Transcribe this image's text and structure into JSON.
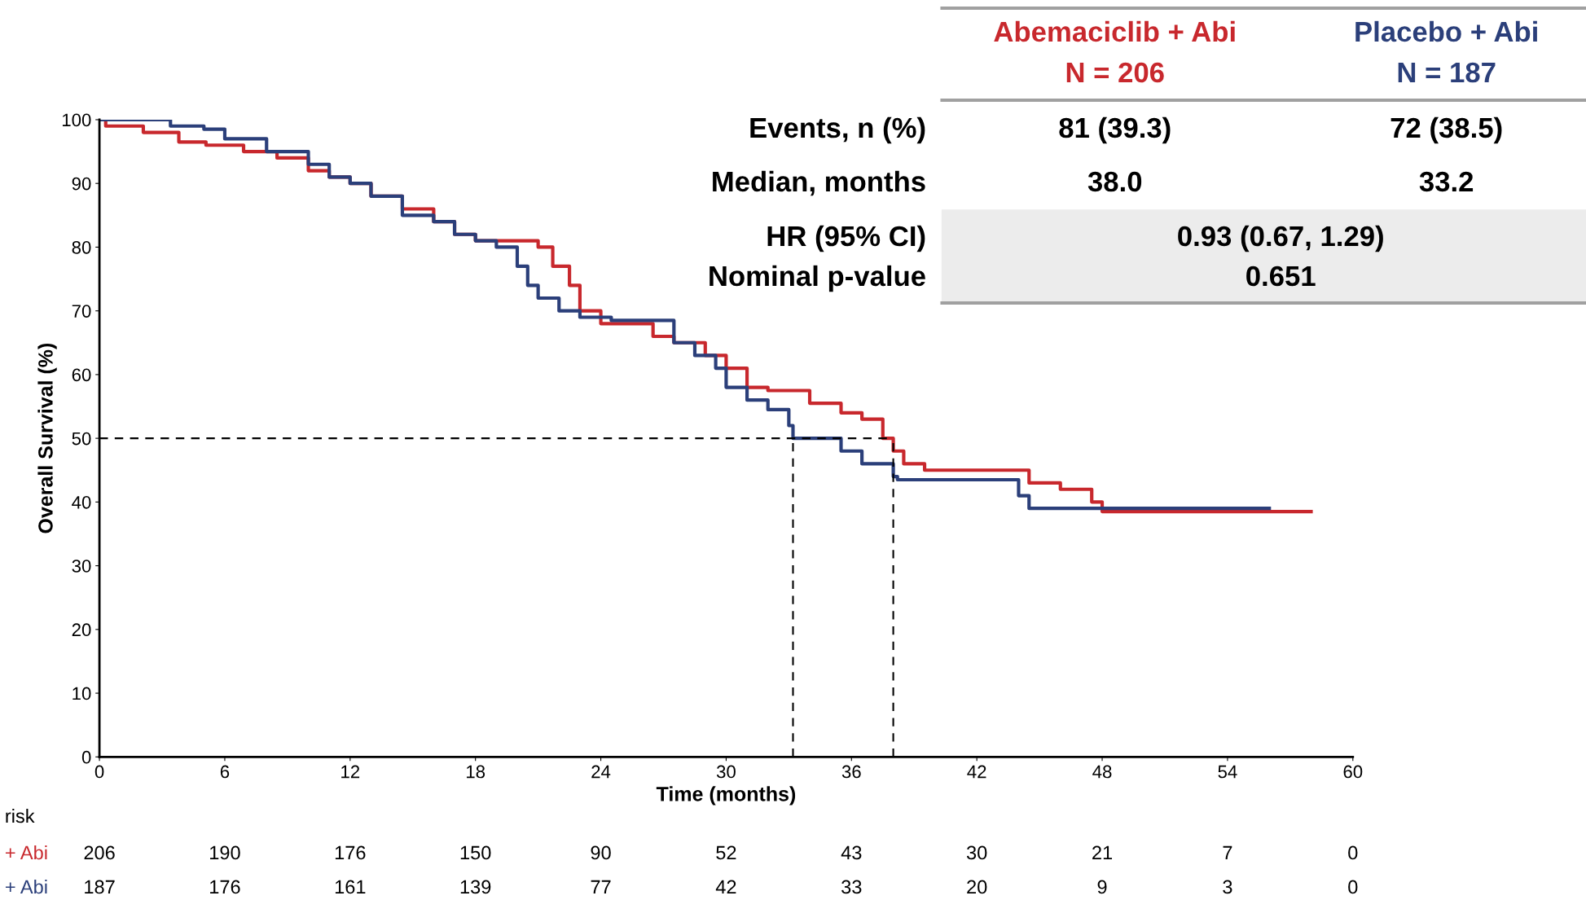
{
  "chart_data": {
    "type": "step",
    "xlabel": "Time (months)",
    "ylabel": "Overall Survival (%)",
    "xlim": [
      0,
      60
    ],
    "xticks": [
      0,
      6,
      12,
      18,
      24,
      30,
      36,
      42,
      48,
      54,
      60
    ],
    "ylim": [
      0,
      100
    ],
    "yticks": [
      0,
      10,
      20,
      30,
      40,
      50,
      60,
      70,
      80,
      90,
      100
    ],
    "grid": false,
    "marker": "none",
    "line_style": "solid",
    "series": [
      {
        "name": "Abemaciclib + Abi",
        "color": "#c8282d",
        "x": [
          0,
          0.3,
          2.1,
          3.8,
          5.1,
          6.9,
          8.5,
          10,
          11,
          12,
          13,
          14.5,
          16,
          17,
          18,
          21,
          21.7,
          22.5,
          23,
          24,
          26.5,
          27.5,
          29,
          30,
          31,
          32,
          33.5,
          34,
          35.5,
          36.5,
          37.5,
          38,
          38.5,
          39.5,
          44.5,
          46,
          47.5,
          48,
          58
        ],
        "values": [
          100,
          99,
          98,
          96.5,
          96,
          95,
          94,
          92,
          91,
          90,
          88,
          86,
          84,
          82,
          81,
          80,
          77,
          74,
          70,
          68,
          66,
          65,
          63,
          61,
          58,
          57.5,
          57.5,
          55.5,
          54,
          53,
          50,
          48,
          46,
          45,
          43,
          42,
          40,
          38.5,
          38.5
        ]
      },
      {
        "name": "Placebo + Abi",
        "color": "#2b3f7a",
        "x": [
          0,
          3.4,
          5,
          6,
          8,
          10,
          11,
          12,
          13,
          14.5,
          16,
          17,
          18,
          19,
          20,
          20.5,
          21,
          22,
          23,
          24.5,
          27,
          27.5,
          28.5,
          29.5,
          30,
          31,
          32,
          33,
          33.2,
          35,
          35.5,
          36.5,
          38,
          38.2,
          43.7,
          44,
          44.5,
          56
        ],
        "values": [
          100,
          99,
          98.5,
          97,
          95,
          93,
          91,
          90,
          88,
          85,
          84,
          82,
          81,
          80,
          77,
          74,
          72,
          70,
          69,
          68.5,
          68.5,
          65,
          63,
          61,
          58,
          56,
          54.5,
          52,
          50,
          50,
          48,
          46,
          44,
          43.5,
          43.5,
          41,
          39,
          39
        ]
      }
    ],
    "ref_lines": [
      {
        "axis": "y",
        "value": 50,
        "line_style": "dashed",
        "color": "#000000"
      },
      {
        "axis": "x",
        "value": 33.2,
        "line_style": "dashed",
        "color": "#000000"
      },
      {
        "axis": "x",
        "value": 38.0,
        "line_style": "dashed",
        "color": "#000000"
      }
    ],
    "annotations": [
      "N = 206",
      "N = 187",
      "Events, n (%)",
      "81 (39.3)",
      "72 (38.5)",
      "Median, months",
      "38.0",
      "33.2",
      "HR (95% CI)",
      "0.93 (0.67, 1.29)",
      "Nominal p-value",
      "0.651",
      "risk",
      "+ Abi",
      "+ Abi",
      "206",
      "190",
      "176",
      "150",
      "90",
      "52",
      "43",
      "30",
      "21",
      "7",
      "0",
      "187",
      "176",
      "161",
      "139",
      "77",
      "42",
      "33",
      "20",
      "9",
      "3",
      "0"
    ]
  }
}
